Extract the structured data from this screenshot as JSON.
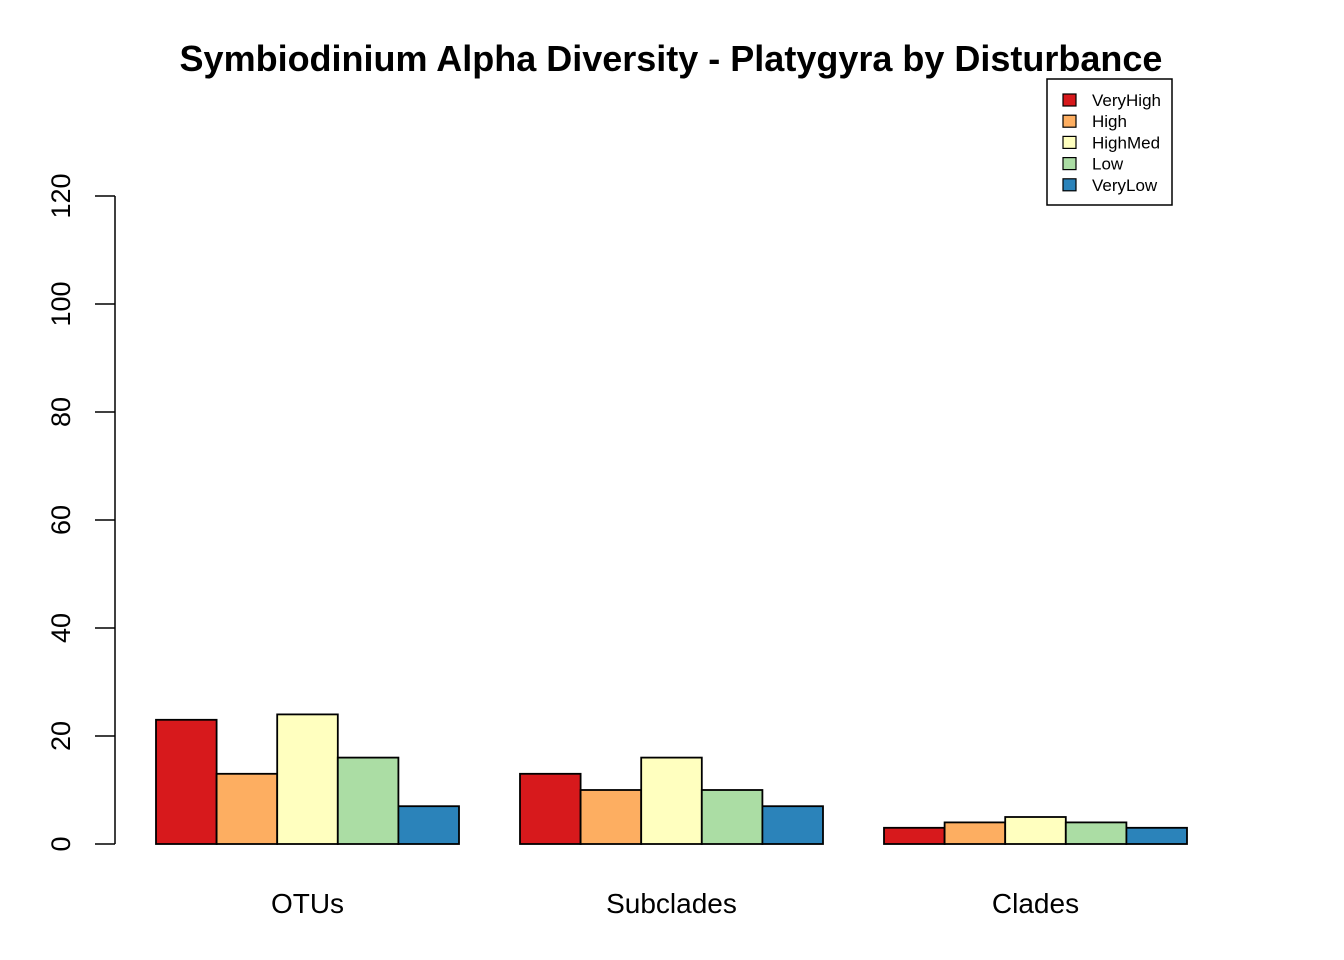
{
  "chart_data": {
    "type": "bar",
    "title": "Symbiodinium Alpha Diversity - Platygyra by Disturbance",
    "xlabel": "",
    "ylabel": "",
    "ylim": [
      0,
      120
    ],
    "yticks": [
      "0",
      "20",
      "40",
      "60",
      "80",
      "100",
      "120"
    ],
    "categories": [
      "OTUs",
      "Subclades",
      "Clades"
    ],
    "series": [
      {
        "name": "VeryHigh",
        "color": "#d7191c",
        "values": [
          23,
          13,
          3
        ]
      },
      {
        "name": "High",
        "color": "#fdae61",
        "values": [
          13,
          10,
          4
        ]
      },
      {
        "name": "HighMed",
        "color": "#ffffbf",
        "values": [
          24,
          16,
          5
        ]
      },
      {
        "name": "Low",
        "color": "#abdda4",
        "values": [
          16,
          10,
          4
        ]
      },
      {
        "name": "VeryLow",
        "color": "#2b83ba",
        "values": [
          7,
          7,
          3
        ]
      }
    ],
    "legend_position": "top-right",
    "grid": false
  }
}
